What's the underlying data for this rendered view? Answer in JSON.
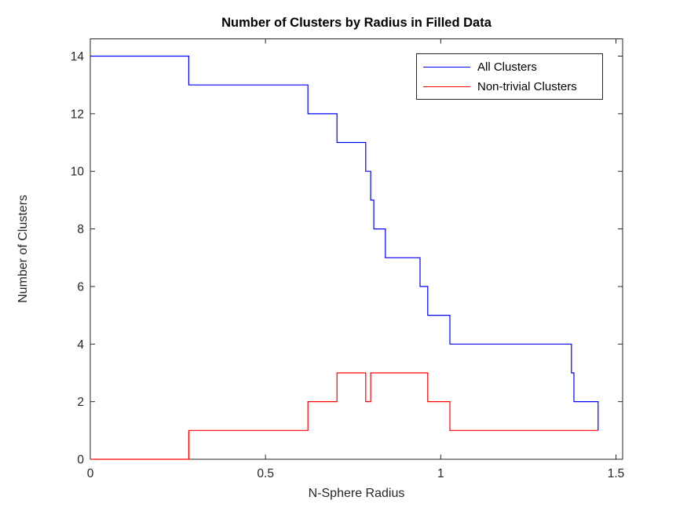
{
  "figure": {
    "background": "#ffffff"
  },
  "chart_data": {
    "type": "line",
    "subtype": "stairs",
    "title": "Number of Clusters by Radius in Filled Data",
    "xlabel": "N-Sphere Radius",
    "ylabel": "Number of Clusters",
    "xlim": [
      0,
      1.519
    ],
    "ylim": [
      0,
      14.6
    ],
    "grid": false,
    "x_ticks": {
      "values": [
        0,
        0.5,
        1,
        1.5
      ],
      "labels": [
        "0",
        "0.5",
        "1",
        "1.5"
      ]
    },
    "y_ticks": {
      "values": [
        0,
        2,
        4,
        6,
        8,
        10,
        12,
        14
      ],
      "labels": [
        "0",
        "2",
        "4",
        "6",
        "8",
        "10",
        "12",
        "14"
      ]
    },
    "legend": {
      "position": "top-right",
      "entries": [
        {
          "label": "All Clusters",
          "color": "#0000FF"
        },
        {
          "label": "Non-trivial Clusters",
          "color": "#FF0000"
        }
      ]
    },
    "series": [
      {
        "name": "All Clusters",
        "color": "#0000FF",
        "points": [
          [
            0,
            14
          ],
          [
            0.281,
            14
          ],
          [
            0.281,
            13
          ],
          [
            0.621,
            13
          ],
          [
            0.621,
            12
          ],
          [
            0.704,
            12
          ],
          [
            0.704,
            11
          ],
          [
            0.786,
            11
          ],
          [
            0.786,
            10
          ],
          [
            0.8,
            10
          ],
          [
            0.8,
            9
          ],
          [
            0.809,
            9
          ],
          [
            0.809,
            8
          ],
          [
            0.842,
            8
          ],
          [
            0.842,
            7
          ],
          [
            0.941,
            7
          ],
          [
            0.941,
            6
          ],
          [
            0.963,
            6
          ],
          [
            0.963,
            5
          ],
          [
            1.026,
            5
          ],
          [
            1.026,
            4
          ],
          [
            1.373,
            4
          ],
          [
            1.373,
            3
          ],
          [
            1.38,
            3
          ],
          [
            1.38,
            2
          ],
          [
            1.449,
            2
          ],
          [
            1.449,
            1
          ]
        ]
      },
      {
        "name": "Non-trivial Clusters",
        "color": "#FF0000",
        "points": [
          [
            0,
            0
          ],
          [
            0.281,
            0
          ],
          [
            0.281,
            1
          ],
          [
            0.621,
            1
          ],
          [
            0.621,
            2
          ],
          [
            0.704,
            2
          ],
          [
            0.704,
            3
          ],
          [
            0.786,
            3
          ],
          [
            0.786,
            2
          ],
          [
            0.8,
            2
          ],
          [
            0.8,
            3
          ],
          [
            0.963,
            3
          ],
          [
            0.963,
            2
          ],
          [
            1.026,
            2
          ],
          [
            1.026,
            1
          ],
          [
            1.449,
            1
          ]
        ]
      }
    ],
    "axis_color": "#262626",
    "tick_label_color": "#262626"
  }
}
